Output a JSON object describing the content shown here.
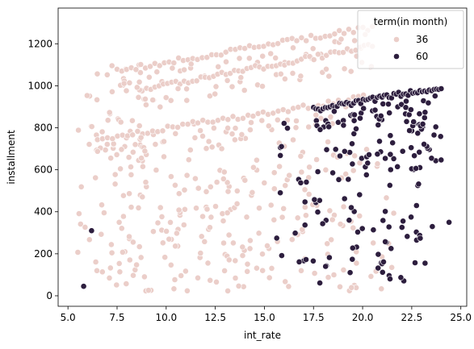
{
  "chart_data": {
    "type": "scatter",
    "xlabel": "int_rate",
    "ylabel": "installment",
    "xlim": [
      4.5,
      25.3
    ],
    "ylim": [
      -50,
      1370
    ],
    "xticks": [
      5.0,
      7.5,
      10.0,
      12.5,
      15.0,
      17.5,
      20.0,
      22.5,
      25.0
    ],
    "xtick_labels": [
      "5.0",
      "7.5",
      "10.0",
      "12.5",
      "15.0",
      "17.5",
      "20.0",
      "22.5",
      "25.0"
    ],
    "yticks": [
      0,
      200,
      400,
      600,
      800,
      1000,
      1200
    ],
    "ytick_labels": [
      "0",
      "200",
      "400",
      "600",
      "800",
      "1000",
      "1200"
    ],
    "grid": false,
    "legend": {
      "title": "term(in month)",
      "placement": "upper-right",
      "entries": [
        "36",
        "60"
      ]
    },
    "colors": {
      "36": "#ebcec9",
      "60": "#2d1e3e",
      "edge": "#ffffff"
    },
    "series": [
      {
        "name": "36",
        "regions": [
          {
            "x": [
              5.4,
              17.0
            ],
            "y": [
              20,
              600
            ]
          },
          {
            "x": [
              5.4,
              16.5
            ],
            "y": [
              20,
              780
            ]
          },
          {
            "x": [
              7.0,
              19.5
            ],
            "y": [
              20,
              850
            ]
          },
          {
            "x": [
              16.5,
              21.8
            ],
            "y": [
              20,
              750
            ]
          },
          {
            "x": [
              5.5,
              9.0
            ],
            "y": [
              650,
              1100
            ]
          }
        ],
        "upper_edges": [
          {
            "x": [
              7.5,
              20.5
            ],
            "y": [
              1085,
              1290
            ]
          },
          {
            "x": [
              9.0,
              20.5
            ],
            "y": [
              1000,
              1200
            ]
          },
          {
            "x": [
              6.5,
              20.3
            ],
            "y": [
              760,
              960
            ]
          }
        ]
      },
      {
        "name": "60",
        "regions": [
          {
            "x": [
              15.5,
              24.2
            ],
            "y": [
              150,
              860
            ]
          },
          {
            "x": [
              17.0,
              23.0
            ],
            "y": [
              40,
              700
            ]
          },
          {
            "x": [
              19.0,
              24.0
            ],
            "y": [
              600,
              880
            ]
          }
        ],
        "upper_edges": [
          {
            "x": [
              17.5,
              24.0
            ],
            "y": [
              900,
              1005
            ]
          }
        ],
        "extremes": [
          {
            "x": 5.8,
            "y": 45
          },
          {
            "x": 24.4,
            "y": 350
          },
          {
            "x": 6.2,
            "y": 310
          }
        ]
      }
    ]
  }
}
